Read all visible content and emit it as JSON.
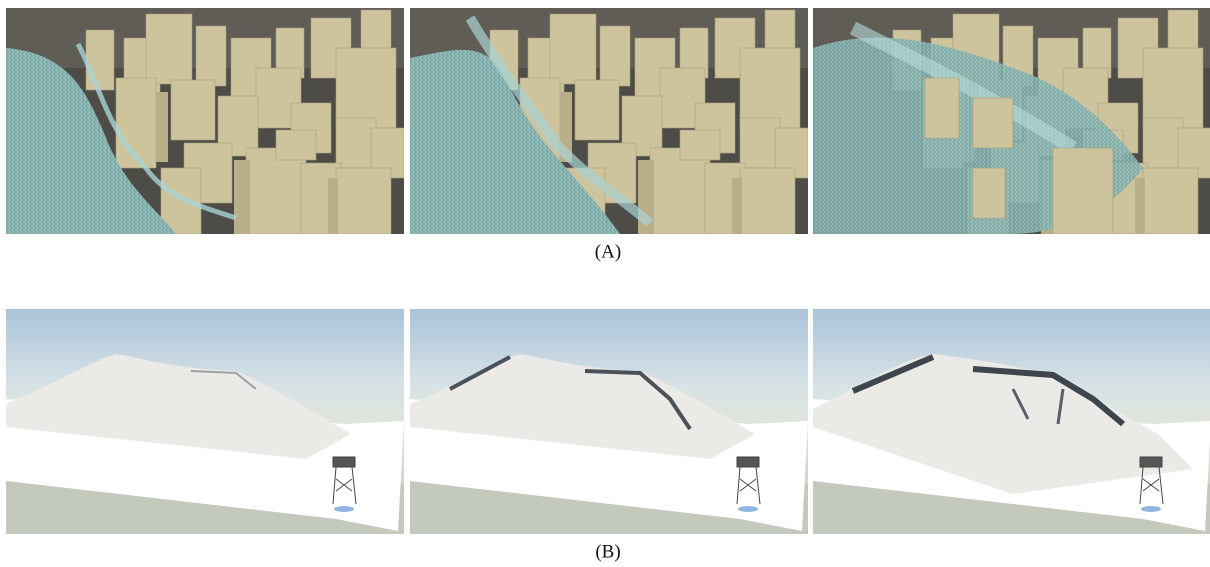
{
  "figure": {
    "panels": [
      {
        "label": "(A)"
      },
      {
        "label": "(B)"
      }
    ]
  }
}
